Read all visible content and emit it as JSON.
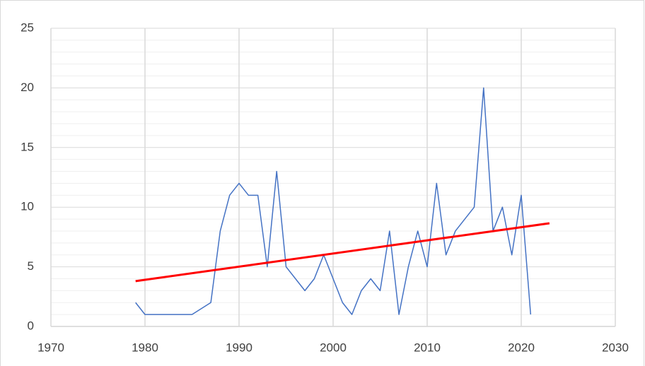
{
  "chart_data": {
    "type": "line",
    "xlim": [
      1970,
      2030
    ],
    "xticks": [
      1970,
      1980,
      1990,
      2000,
      2010,
      2020,
      2030
    ],
    "ylim": [
      0,
      25
    ],
    "yticks": [
      0,
      5,
      10,
      15,
      20,
      25
    ],
    "yminor_ticks": [
      1,
      2,
      3,
      4,
      6,
      7,
      8,
      9,
      11,
      12,
      13,
      14,
      16,
      17,
      18,
      19,
      21,
      22,
      23,
      24
    ],
    "grid": true,
    "series": [
      {
        "color": "#4472c4",
        "x": [
          1979,
          1980,
          1985,
          1987,
          1988,
          1989,
          1990,
          1991,
          1992,
          1993,
          1994,
          1995,
          1997,
          1998,
          1999,
          2001,
          2002,
          2003,
          2004,
          2005,
          2006,
          2007,
          2008,
          2009,
          2010,
          2011,
          2012,
          2013,
          2015,
          2016,
          2017,
          2018,
          2019,
          2020,
          2021
        ],
        "values": [
          2,
          1,
          1,
          2,
          8,
          11,
          12,
          11,
          11,
          5,
          13,
          5,
          3,
          4,
          6,
          2,
          1,
          3,
          4,
          3,
          8,
          1,
          5,
          8,
          5,
          12,
          6,
          8,
          10,
          20,
          8,
          10,
          6,
          11,
          1
        ]
      },
      {
        "color": "#ff0000",
        "x": [
          1979,
          2023
        ],
        "values": [
          3.8,
          8.65
        ]
      }
    ]
  }
}
